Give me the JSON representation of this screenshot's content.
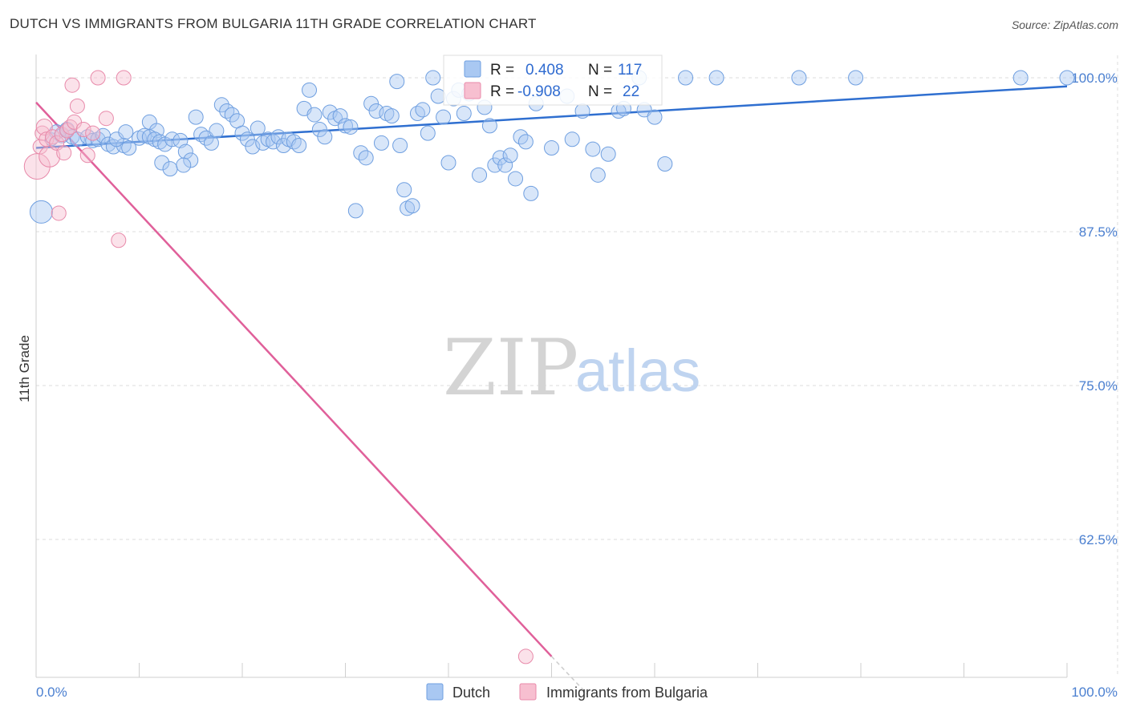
{
  "title": "DUTCH VS IMMIGRANTS FROM BULGARIA 11TH GRADE CORRELATION CHART",
  "source": "Source: ZipAtlas.com",
  "watermark": {
    "zip": "ZIP",
    "atlas": "atlas"
  },
  "colors": {
    "dutch_fill": "#a9c8f2",
    "dutch_stroke": "#6f9fe0",
    "dutch_line": "#2f6fd0",
    "bulgaria_fill": "#f7bfd0",
    "bulgaria_stroke": "#e88aaa",
    "bulgaria_line": "#e0609a",
    "grid": "#dddddd"
  },
  "legend_top": {
    "rows": [
      {
        "r_label": "R =",
        "r_value": "0.408",
        "n_label": "N =",
        "n_value": "117"
      },
      {
        "r_label": "R =",
        "r_value": "-0.908",
        "n_label": "N =",
        "n_value": "22"
      }
    ]
  },
  "legend_bottom": [
    "Dutch",
    "Immigrants from Bulgaria"
  ],
  "chart_data": {
    "type": "scatter",
    "title": "DUTCH VS IMMIGRANTS FROM BULGARIA 11TH GRADE CORRELATION CHART",
    "xlabel": "",
    "ylabel": "11th Grade",
    "xlim": [
      0,
      100
    ],
    "ylim": [
      52,
      101
    ],
    "x_tick_labels": [
      "0.0%",
      "100.0%"
    ],
    "y_ticks": [
      100,
      87.5,
      75,
      62.5
    ],
    "y_tick_labels": [
      "100.0%",
      "87.5%",
      "75.0%",
      "62.5%"
    ],
    "grid": true,
    "legend_position": "bottom",
    "series": [
      {
        "name": "Dutch",
        "r": 0.408,
        "n": 117,
        "trend": {
          "x": [
            0,
            100
          ],
          "y": [
            94.3,
            99.3
          ]
        },
        "points": [
          [
            0.5,
            89.1,
            14
          ],
          [
            1.5,
            95.0,
            8
          ],
          [
            2.0,
            95.6,
            9
          ],
          [
            2.5,
            95.3,
            9
          ],
          [
            3.0,
            95.8,
            9
          ],
          [
            3.5,
            95.2,
            9
          ],
          [
            4.0,
            95.0,
            9
          ],
          [
            5.0,
            95.2,
            9
          ],
          [
            5.5,
            94.9,
            9
          ],
          [
            6.0,
            95.0,
            9
          ],
          [
            6.5,
            95.3,
            9
          ],
          [
            7.0,
            94.6,
            9
          ],
          [
            7.5,
            94.4,
            9
          ],
          [
            8.5,
            94.5,
            9
          ],
          [
            9.0,
            94.3,
            9
          ],
          [
            7.8,
            95.0,
            9
          ],
          [
            8.7,
            95.6,
            9
          ],
          [
            11.0,
            96.4,
            9
          ],
          [
            11.7,
            95.7,
            9
          ],
          [
            12.2,
            93.1,
            9
          ],
          [
            13.0,
            92.6,
            9
          ],
          [
            10.0,
            95.1,
            9
          ],
          [
            10.5,
            95.3,
            9
          ],
          [
            11.0,
            95.2,
            9
          ],
          [
            11.5,
            95.0,
            9
          ],
          [
            12.0,
            94.8,
            9
          ],
          [
            12.5,
            94.6,
            9
          ],
          [
            13.2,
            95.0,
            9
          ],
          [
            14.0,
            94.9,
            9
          ],
          [
            14.5,
            94.0,
            9
          ],
          [
            15.0,
            93.3,
            9
          ],
          [
            14.3,
            92.9,
            9
          ],
          [
            15.5,
            96.8,
            9
          ],
          [
            16.0,
            95.4,
            9
          ],
          [
            16.5,
            95.1,
            9
          ],
          [
            17.0,
            94.7,
            9
          ],
          [
            17.5,
            95.7,
            9
          ],
          [
            18.0,
            97.8,
            9
          ],
          [
            18.5,
            97.3,
            9
          ],
          [
            19.0,
            97.0,
            9
          ],
          [
            19.5,
            96.5,
            9
          ],
          [
            20.0,
            95.5,
            9
          ],
          [
            20.5,
            95.0,
            9
          ],
          [
            21.0,
            94.4,
            9
          ],
          [
            21.5,
            95.9,
            9
          ],
          [
            22.0,
            94.7,
            9
          ],
          [
            22.5,
            95.0,
            9
          ],
          [
            23.0,
            94.8,
            9
          ],
          [
            23.5,
            95.2,
            9
          ],
          [
            24.0,
            94.5,
            9
          ],
          [
            24.5,
            95.0,
            9
          ],
          [
            25.0,
            94.8,
            9
          ],
          [
            25.5,
            94.5,
            9
          ],
          [
            26.0,
            97.5,
            9
          ],
          [
            26.5,
            99.0,
            9
          ],
          [
            27.0,
            97.0,
            9
          ],
          [
            27.5,
            95.8,
            9
          ],
          [
            28.0,
            95.2,
            9
          ],
          [
            28.5,
            97.2,
            9
          ],
          [
            29.0,
            96.7,
            9
          ],
          [
            29.5,
            96.9,
            9
          ],
          [
            30.0,
            96.1,
            9
          ],
          [
            30.5,
            96.0,
            9
          ],
          [
            31.0,
            89.2,
            9
          ],
          [
            31.5,
            93.9,
            9
          ],
          [
            32.0,
            93.5,
            9
          ],
          [
            32.5,
            97.9,
            9
          ],
          [
            33.0,
            97.3,
            9
          ],
          [
            33.5,
            94.7,
            9
          ],
          [
            34.0,
            97.1,
            9
          ],
          [
            34.5,
            96.9,
            9
          ],
          [
            35.0,
            99.7,
            9
          ],
          [
            35.3,
            94.5,
            9
          ],
          [
            35.7,
            90.9,
            9
          ],
          [
            36.0,
            89.4,
            9
          ],
          [
            36.5,
            89.6,
            9
          ],
          [
            37.0,
            97.1,
            9
          ],
          [
            37.5,
            97.4,
            9
          ],
          [
            38.0,
            95.5,
            9
          ],
          [
            38.5,
            100.0,
            9
          ],
          [
            39.0,
            98.5,
            9
          ],
          [
            39.5,
            96.8,
            9
          ],
          [
            40.0,
            93.1,
            9
          ],
          [
            40.5,
            98.3,
            9
          ],
          [
            41.0,
            99.0,
            9
          ],
          [
            41.5,
            97.1,
            9
          ],
          [
            42.0,
            98.7,
            9
          ],
          [
            43.0,
            92.1,
            9
          ],
          [
            43.5,
            97.6,
            9
          ],
          [
            44.0,
            96.1,
            9
          ],
          [
            44.5,
            92.9,
            9
          ],
          [
            45.0,
            93.5,
            9
          ],
          [
            45.5,
            92.9,
            9
          ],
          [
            46.0,
            93.7,
            9
          ],
          [
            46.5,
            91.8,
            9
          ],
          [
            47.0,
            95.2,
            9
          ],
          [
            47.5,
            94.8,
            9
          ],
          [
            48.0,
            90.6,
            9
          ],
          [
            48.5,
            97.9,
            9
          ],
          [
            50.0,
            94.3,
            9
          ],
          [
            51.5,
            98.5,
            9
          ],
          [
            52.0,
            95.0,
            9
          ],
          [
            53.0,
            97.3,
            9
          ],
          [
            54.0,
            94.2,
            9
          ],
          [
            54.5,
            92.1,
            9
          ],
          [
            55.5,
            93.8,
            9
          ],
          [
            56.5,
            97.3,
            9
          ],
          [
            57.0,
            97.5,
            9
          ],
          [
            58.5,
            100.0,
            9
          ],
          [
            59.0,
            97.4,
            9
          ],
          [
            60.0,
            96.8,
            9
          ],
          [
            61.0,
            93.0,
            9
          ],
          [
            63.0,
            100.0,
            9
          ],
          [
            66.0,
            100.0,
            9
          ],
          [
            74.0,
            100.0,
            9
          ],
          [
            79.5,
            100.0,
            9
          ],
          [
            95.5,
            100.0,
            9
          ],
          [
            100.0,
            100.0,
            9
          ]
        ]
      },
      {
        "name": "Immigrants from Bulgaria",
        "r": -0.908,
        "n": 22,
        "trend": {
          "x": [
            0,
            50
          ],
          "y": [
            98.0,
            53.0
          ]
        },
        "trend_dashed": {
          "x": [
            50,
            53.5
          ],
          "y": [
            53.0,
            49.9
          ]
        },
        "points": [
          [
            0.1,
            92.8,
            16
          ],
          [
            0.4,
            94.4,
            9
          ],
          [
            0.6,
            95.5,
            9
          ],
          [
            0.8,
            96.0,
            10
          ],
          [
            1.0,
            95.0,
            9
          ],
          [
            1.3,
            93.6,
            13
          ],
          [
            1.6,
            95.2,
            9
          ],
          [
            2.0,
            94.7,
            9
          ],
          [
            2.2,
            89.0,
            9
          ],
          [
            2.5,
            95.4,
            9
          ],
          [
            2.7,
            93.9,
            9
          ],
          [
            3.0,
            95.7,
            9
          ],
          [
            3.3,
            96.0,
            9
          ],
          [
            3.5,
            99.4,
            9
          ],
          [
            3.7,
            96.4,
            9
          ],
          [
            4.0,
            97.7,
            9
          ],
          [
            4.6,
            95.8,
            9
          ],
          [
            5.0,
            93.7,
            9
          ],
          [
            5.5,
            95.5,
            9
          ],
          [
            6.0,
            100.0,
            9
          ],
          [
            6.8,
            96.7,
            9
          ],
          [
            8.0,
            86.8,
            9
          ],
          [
            8.5,
            100.0,
            9
          ],
          [
            47.5,
            53.0,
            9
          ]
        ]
      }
    ]
  }
}
